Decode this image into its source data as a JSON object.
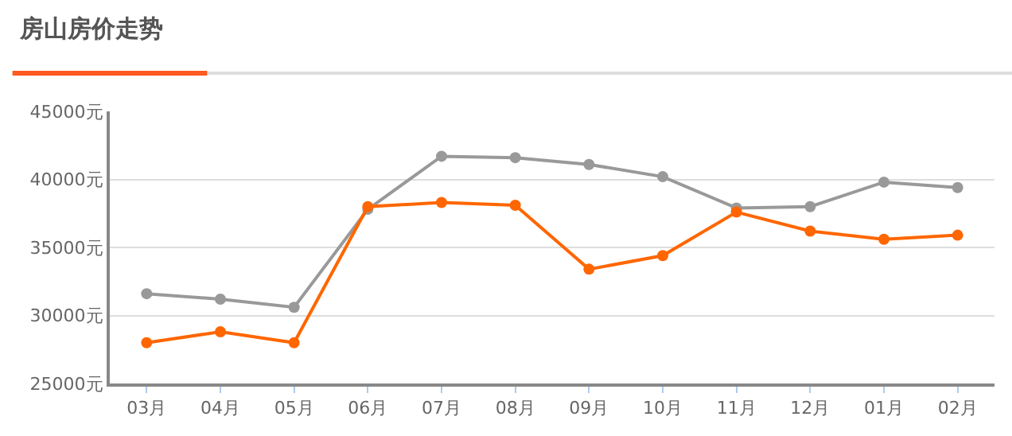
{
  "chart_data": {
    "type": "line",
    "title": "房山房价走势",
    "categories": [
      "03月",
      "04月",
      "05月",
      "06月",
      "07月",
      "08月",
      "09月",
      "10月",
      "11月",
      "12月",
      "01月",
      "02月"
    ],
    "series": [
      {
        "color": "#999999",
        "values": [
          31600,
          31200,
          30600,
          37800,
          41700,
          41600,
          41100,
          40200,
          37900,
          38000,
          39800,
          39400
        ]
      },
      {
        "color": "#ff6600",
        "values": [
          28000,
          28800,
          28000,
          38000,
          38300,
          38100,
          33400,
          34400,
          37600,
          36200,
          35600,
          35900
        ]
      }
    ],
    "ylim": [
      25000,
      45000
    ],
    "yticks": [
      {
        "value": 25000,
        "label": "25000元"
      },
      {
        "value": 30000,
        "label": "30000元"
      },
      {
        "value": 35000,
        "label": "35000元"
      },
      {
        "value": 40000,
        "label": "40000元"
      },
      {
        "value": 45000,
        "label": "45000元"
      }
    ],
    "grid": "y",
    "marker": "circle",
    "line_style": "solid"
  }
}
